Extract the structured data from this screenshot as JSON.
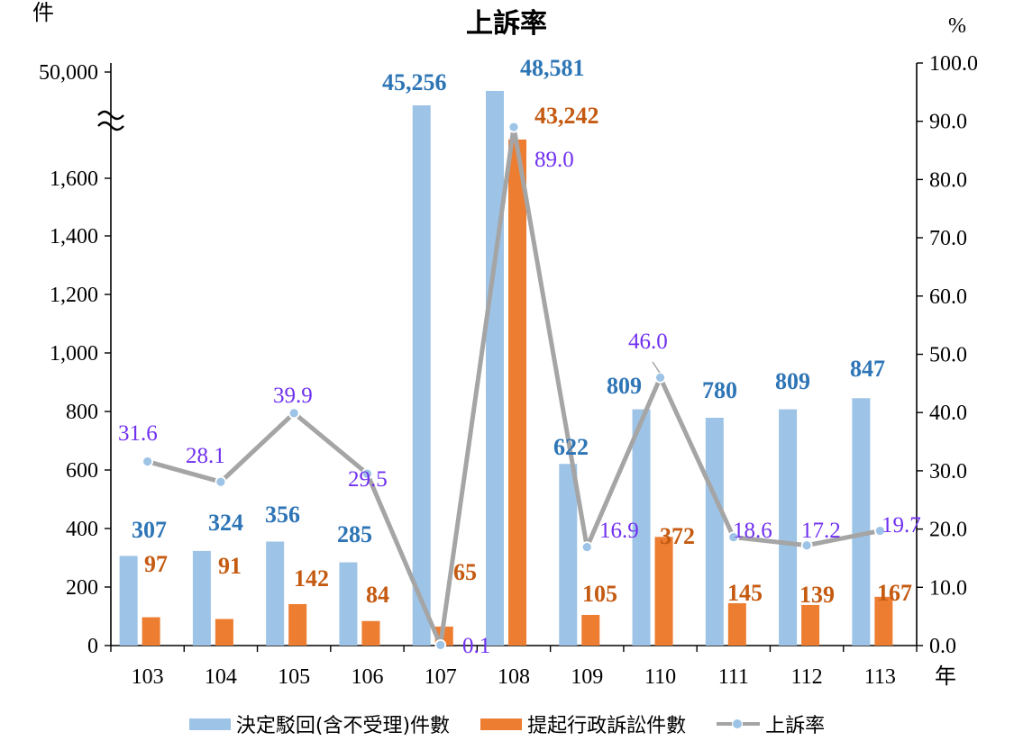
{
  "chart_data": {
    "type": "bar+line",
    "title": "上訴率",
    "y_left_unit": "件",
    "y_right_unit": "%",
    "x_unit": "年",
    "categories": [
      "103",
      "104",
      "105",
      "106",
      "107",
      "108",
      "109",
      "110",
      "111",
      "112",
      "113"
    ],
    "y_left_ticks": [
      "0",
      "200",
      "400",
      "600",
      "800",
      "1,000",
      "1,200",
      "1,400",
      "1,600",
      "50,000"
    ],
    "y_right_ticks": [
      "0.0",
      "10.0",
      "20.0",
      "30.0",
      "40.0",
      "50.0",
      "60.0",
      "70.0",
      "80.0",
      "90.0",
      "100.0"
    ],
    "y_left_range": [
      0,
      1800
    ],
    "y_left_axis_break": true,
    "y_right_range": [
      0,
      100
    ],
    "series": [
      {
        "name": "決定駁回(含不受理)件數",
        "kind": "bar",
        "color": "#9DC3E6",
        "label_color": "#2E75B6",
        "values": [
          307,
          324,
          356,
          285,
          45256,
          48581,
          622,
          809,
          780,
          809,
          847
        ],
        "labels": [
          "307",
          "324",
          "356",
          "285",
          "45,256",
          "48,581",
          "622",
          "809",
          "780",
          "809",
          "847"
        ]
      },
      {
        "name": "提起行政訴訟件數",
        "kind": "bar",
        "color": "#ED7D31",
        "label_color": "#C55A11",
        "values": [
          97,
          91,
          142,
          84,
          65,
          43242,
          105,
          372,
          145,
          139,
          167
        ],
        "labels": [
          "97",
          "91",
          "142",
          "84",
          "65",
          "43,242",
          "105",
          "372",
          "145",
          "139",
          "167"
        ]
      },
      {
        "name": "上訴率",
        "kind": "line",
        "axis": "right",
        "color": "#A5A5A5",
        "marker_color": "#9DC3E6",
        "label_color": "#7030F0",
        "values": [
          31.6,
          28.1,
          39.9,
          29.5,
          0.1,
          89.0,
          16.9,
          46.0,
          18.6,
          17.2,
          19.7
        ],
        "labels": [
          "31.6",
          "28.1",
          "39.9",
          "29.5",
          "0.1",
          "89.0",
          "16.9",
          "46.0",
          "18.6",
          "17.2",
          "19.7"
        ]
      }
    ],
    "grid": false,
    "legend_position": "bottom"
  }
}
